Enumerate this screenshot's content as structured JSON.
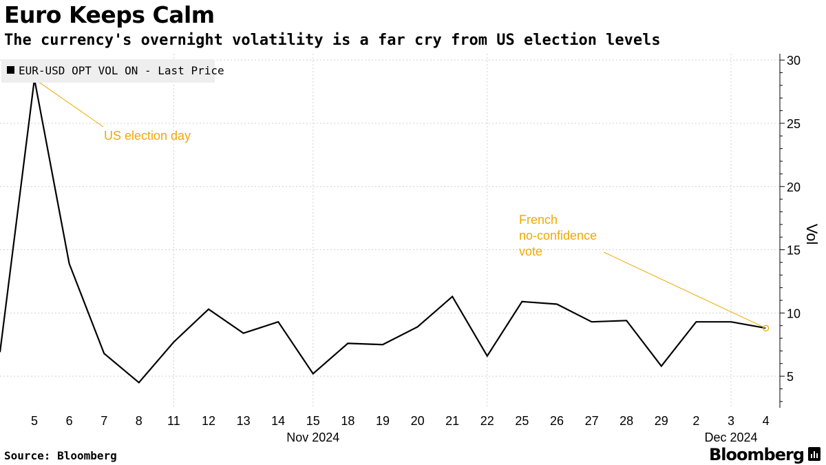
{
  "header": {
    "title": "Euro Keeps Calm",
    "subtitle": "The currency's overnight volatility is a far cry from US election levels"
  },
  "footer": {
    "source": "Source: Bloomberg",
    "brand": "Bloomberg",
    "brand_icon": "bloomberg-terminal-icon"
  },
  "colors": {
    "line": "#000000",
    "annotation": "#f0a800",
    "grid": "#d0d0d0",
    "legend_bg": "#eeeeee"
  },
  "chart_data": {
    "type": "line",
    "ylabel": "Vol",
    "y_axis_position": "right",
    "ylim": [
      2.5,
      30.5
    ],
    "yticks": [
      5,
      10,
      15,
      20,
      25,
      30
    ],
    "grid": true,
    "legend": {
      "position": "top-left",
      "entries": [
        "EUR-USD OPT VOL ON - Last Price"
      ]
    },
    "categories": [
      "5",
      "6",
      "7",
      "8",
      "11",
      "12",
      "13",
      "14",
      "15",
      "18",
      "19",
      "20",
      "21",
      "22",
      "25",
      "26",
      "27",
      "28",
      "29",
      "2",
      "3",
      "4"
    ],
    "month_labels": [
      {
        "label": "Nov 2024",
        "category_index": 8
      },
      {
        "label": "Dec 2024",
        "category_index": 20
      }
    ],
    "series": [
      {
        "name": "EUR-USD OPT VOL ON - Last Price",
        "start_value": 6.9,
        "values": [
          28.5,
          13.9,
          6.8,
          4.5,
          7.7,
          10.3,
          8.4,
          9.3,
          5.2,
          7.6,
          7.5,
          8.9,
          11.3,
          6.6,
          10.9,
          10.7,
          9.3,
          9.4,
          5.8,
          9.3,
          9.3,
          8.8
        ]
      }
    ],
    "annotations": [
      {
        "text": [
          "US election day"
        ],
        "category_index": 0
      },
      {
        "text": [
          "French",
          "no-confidence",
          "vote"
        ],
        "category_index": 21
      }
    ]
  }
}
